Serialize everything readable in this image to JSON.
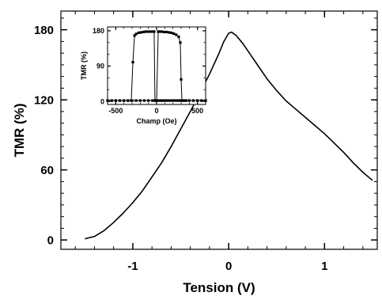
{
  "chart_data": [
    {
      "id": "main",
      "type": "line",
      "xlabel": "Tension (V)",
      "ylabel": "TMR (%)",
      "xlim": [
        -1.75,
        1.55
      ],
      "ylim": [
        -8,
        196
      ],
      "xticks": [
        -1,
        0,
        1
      ],
      "yticks": [
        0,
        60,
        120,
        180
      ],
      "grid": false,
      "legend": "none",
      "series": [
        {
          "color": "#000000",
          "x": [
            -1.5,
            -1.4,
            -1.3,
            -1.2,
            -1.1,
            -1.0,
            -0.9,
            -0.8,
            -0.7,
            -0.6,
            -0.5,
            -0.4,
            -0.3,
            -0.2,
            -0.1,
            -0.05,
            0.0,
            0.03,
            0.08,
            0.15,
            0.2,
            0.3,
            0.4,
            0.5,
            0.6,
            0.7,
            0.8,
            0.9,
            1.0,
            1.1,
            1.2,
            1.3,
            1.4,
            1.5
          ],
          "y": [
            1,
            3,
            8,
            15,
            23,
            32,
            42,
            54,
            66,
            80,
            95,
            110,
            126,
            142,
            160,
            170,
            177,
            178,
            175,
            168,
            162,
            150,
            138,
            128,
            119,
            112,
            105,
            98,
            91,
            83,
            75,
            66,
            58,
            51
          ]
        }
      ]
    },
    {
      "id": "inset",
      "type": "line",
      "xlabel": "Champ (Oe)",
      "ylabel": "TMR (%)",
      "xlim": [
        -600,
        600
      ],
      "ylim": [
        -8,
        190
      ],
      "xticks": [
        -500,
        0,
        500
      ],
      "yticks": [
        0,
        90,
        180
      ],
      "grid": false,
      "legend": "none",
      "series": [
        {
          "color": "#000000",
          "x": [
            -600,
            -550,
            -500,
            -450,
            -400,
            -350,
            -310,
            -290,
            -270,
            -250,
            -220,
            -190,
            -160,
            -130,
            -100,
            -70,
            -40,
            -30,
            -20,
            -10,
            20,
            40,
            60,
            80,
            100,
            130,
            160,
            190,
            220,
            250,
            270,
            290,
            310,
            330,
            360,
            400,
            450,
            500,
            550,
            600
          ],
          "y": [
            2,
            2,
            2,
            2,
            2,
            2,
            2,
            100,
            168,
            172,
            175,
            176,
            177,
            178,
            178,
            178,
            178,
            178,
            2,
            2,
            2,
            2,
            2,
            2,
            2,
            2,
            2,
            2,
            2,
            2,
            2,
            2,
            2,
            2,
            2,
            2,
            2,
            2,
            2,
            2
          ]
        },
        {
          "color": "#000000",
          "x": [
            -600,
            -550,
            -500,
            -450,
            -400,
            -350,
            -300,
            -250,
            -200,
            -150,
            -100,
            -50,
            -20,
            0,
            20,
            40,
            60,
            90,
            120,
            150,
            180,
            210,
            240,
            270,
            290,
            300,
            310,
            330,
            360,
            400,
            450,
            500,
            550,
            600
          ],
          "y": [
            2,
            2,
            2,
            2,
            2,
            2,
            2,
            2,
            2,
            2,
            2,
            2,
            2,
            2,
            178,
            178,
            178,
            177,
            177,
            176,
            175,
            173,
            170,
            165,
            150,
            56,
            2,
            2,
            2,
            2,
            2,
            2,
            2,
            2
          ]
        }
      ]
    }
  ]
}
